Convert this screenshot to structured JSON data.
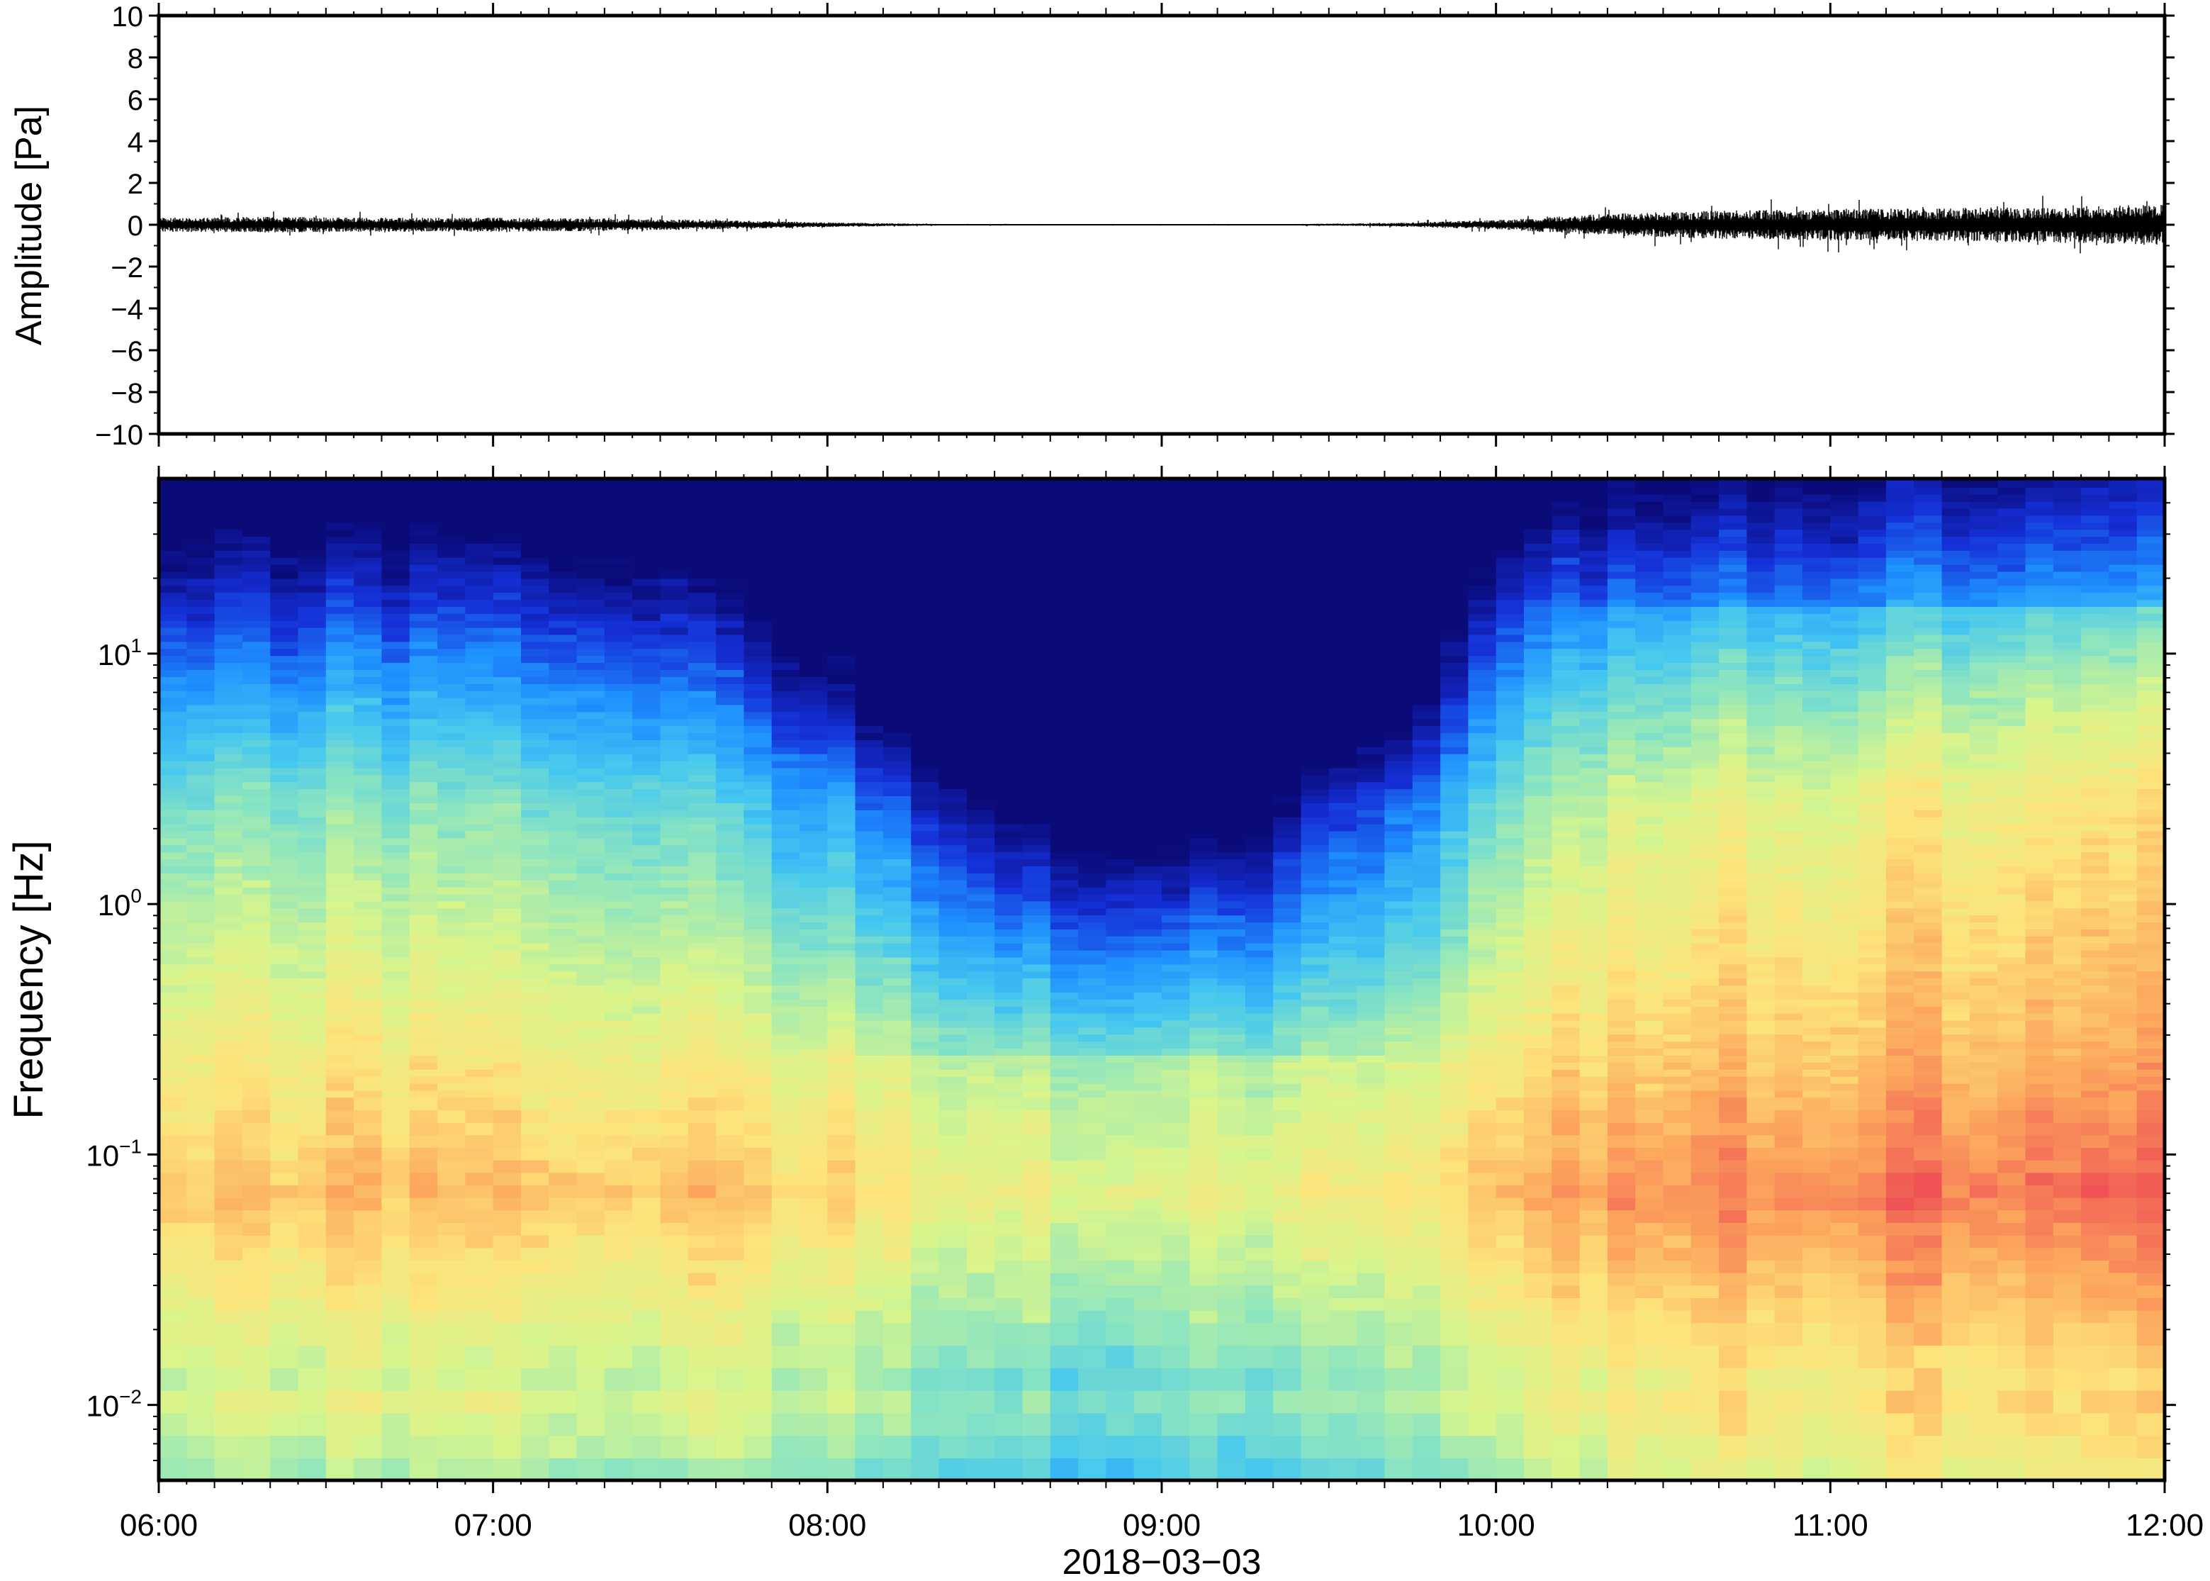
{
  "chart_data": [
    {
      "type": "line",
      "panel": "waveform",
      "ylabel": "Amplitude [Pa]",
      "ylim": [
        -10,
        10
      ],
      "yticks": [
        10,
        8,
        6,
        4,
        2,
        0,
        -2,
        -4,
        -6,
        -8,
        -10
      ],
      "ytick_labels": [
        "10",
        "8",
        "6",
        "4",
        "2",
        "0",
        "−2",
        "−4",
        "−6",
        "−8",
        "−10"
      ],
      "xlim": [
        "06:00",
        "12:00"
      ],
      "envelope": {
        "x": [
          "06:00",
          "06:20",
          "06:40",
          "07:00",
          "07:20",
          "07:40",
          "08:00",
          "08:20",
          "08:40",
          "09:00",
          "09:20",
          "09:40",
          "10:00",
          "10:20",
          "10:40",
          "11:00",
          "11:20",
          "11:40",
          "12:00"
        ],
        "amplitude": [
          0.45,
          0.5,
          0.45,
          0.45,
          0.4,
          0.3,
          0.15,
          0.05,
          0.03,
          0.03,
          0.04,
          0.1,
          0.3,
          0.7,
          0.9,
          1.0,
          1.05,
          1.15,
          1.3
        ]
      },
      "grid": false
    },
    {
      "type": "heatmap",
      "panel": "spectrogram",
      "ylabel": "Frequency [Hz]",
      "xlabel": "2018−03−03",
      "yscale": "log",
      "ylim": [
        0.005,
        50
      ],
      "yticks": [
        0.01,
        0.1,
        1,
        10
      ],
      "ytick_labels": [
        {
          "base": "10",
          "exp": "−2"
        },
        {
          "base": "10",
          "exp": "−1"
        },
        {
          "base": "10",
          "exp": "0"
        },
        {
          "base": "10",
          "exp": "1"
        }
      ],
      "xtick_labels": [
        "06:00",
        "07:00",
        "08:00",
        "09:00",
        "10:00",
        "11:00",
        "12:00"
      ],
      "xlim": [
        "06:00",
        "12:00"
      ],
      "colormap": "jet",
      "colors": [
        "#0a0a78",
        "#1530d8",
        "#1e90ff",
        "#44c7f0",
        "#8ce5c0",
        "#d8f58c",
        "#fde37a",
        "#fca55c",
        "#ef5353"
      ],
      "noise_profile": {
        "x": [
          "06:00",
          "06:30",
          "07:00",
          "07:30",
          "08:00",
          "08:15",
          "08:30",
          "08:45",
          "09:00",
          "09:15",
          "09:30",
          "09:45",
          "10:00",
          "10:15",
          "10:30",
          "11:00",
          "11:30",
          "12:00"
        ],
        "level_rel": [
          0.0,
          0.0,
          0.0,
          -0.05,
          -0.3,
          -0.5,
          -0.75,
          -0.85,
          -0.9,
          -0.85,
          -0.55,
          -0.4,
          -0.05,
          0.15,
          0.25,
          0.3,
          0.38,
          0.45
        ]
      },
      "grid": false
    }
  ]
}
